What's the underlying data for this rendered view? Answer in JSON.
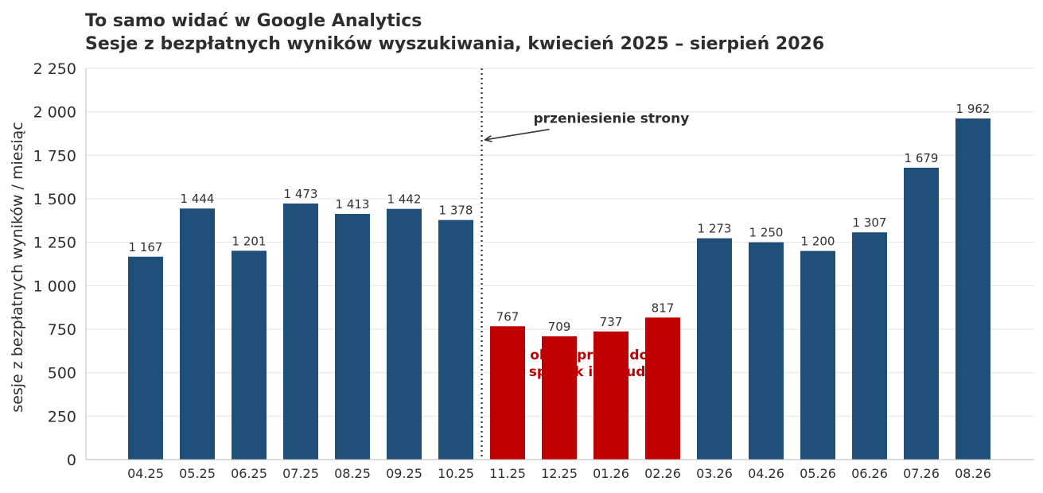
{
  "colors": {
    "normal_bar": "#1f4e79",
    "highlight_bar": "#c00000",
    "grid": "#e6e6e6",
    "axis": "#bbbbbb",
    "marker_line": "#333333",
    "highlight_text": "#c00000"
  },
  "chart_data": {
    "type": "bar",
    "title": "To samo widać w Google Analytics",
    "subtitle": "Sesje z bezpłatnych wyników wyszukiwania, kwiecień 2025 – sierpień 2026",
    "xlabel": "",
    "ylabel": "sesje z bezpłatnych wyników / miesiąc",
    "ylim": [
      0,
      2250
    ],
    "yticks": [
      0,
      250,
      500,
      750,
      1000,
      1250,
      1500,
      1750,
      2000,
      2250
    ],
    "ytick_labels": [
      "0",
      "250",
      "500",
      "750",
      "1 000",
      "1 250",
      "1 500",
      "1 750",
      "2 000",
      "2 250"
    ],
    "grid": true,
    "categories": [
      "04.25",
      "05.25",
      "06.25",
      "07.25",
      "08.25",
      "09.25",
      "10.25",
      "11.25",
      "12.25",
      "01.26",
      "02.26",
      "03.26",
      "04.26",
      "05.26",
      "06.26",
      "07.26",
      "08.26"
    ],
    "values": [
      1167,
      1444,
      1201,
      1473,
      1413,
      1442,
      1378,
      767,
      709,
      737,
      817,
      1273,
      1250,
      1200,
      1307,
      1679,
      1962
    ],
    "value_labels": [
      "1 167",
      "1 444",
      "1 201",
      "1 473",
      "1 413",
      "1 442",
      "1 378",
      "767",
      "709",
      "737",
      "817",
      "1 273",
      "1 250",
      "1 200",
      "1 307",
      "1 679",
      "1 962"
    ],
    "highlighted": [
      false,
      false,
      false,
      false,
      false,
      false,
      false,
      true,
      true,
      true,
      true,
      false,
      false,
      false,
      false,
      false,
      false
    ],
    "annotations": {
      "site_move": {
        "text": "przeniesienie strony",
        "after_category": "10.25",
        "arrow_target_value": 1840
      },
      "highlight_period": {
        "lines": [
          "okres przebudowy:",
          "spadek i odbudowa"
        ]
      }
    }
  }
}
